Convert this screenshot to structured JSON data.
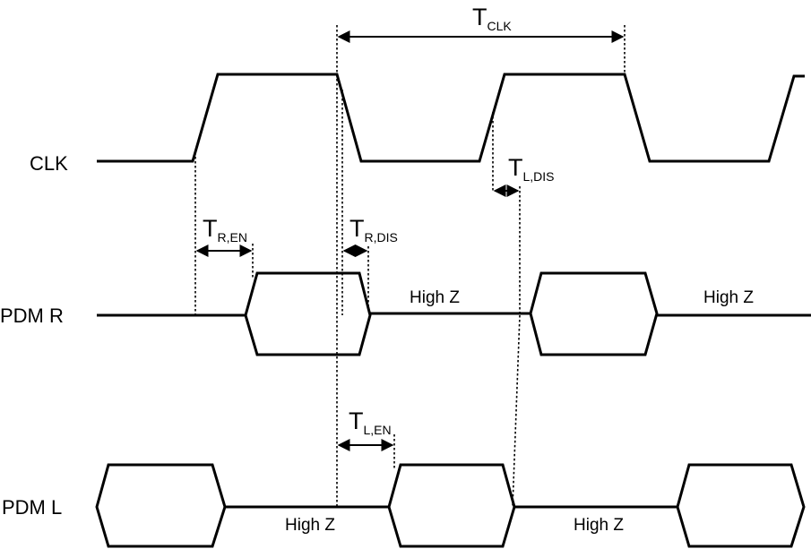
{
  "signals": {
    "clk": "CLK",
    "pdm_r": "PDM R",
    "pdm_l": "PDM L"
  },
  "high_z": [
    "High Z",
    "High Z",
    "High Z",
    "High Z"
  ],
  "timings": {
    "t_clk": {
      "main": "T",
      "sub": "CLK"
    },
    "t_r_en": {
      "main": "T",
      "sub": "R,EN"
    },
    "t_r_dis": {
      "main": "T",
      "sub": "R,DIS"
    },
    "t_l_dis": {
      "main": "T",
      "sub": "L,DIS"
    },
    "t_l_en": {
      "main": "T",
      "sub": "L,EN"
    }
  }
}
